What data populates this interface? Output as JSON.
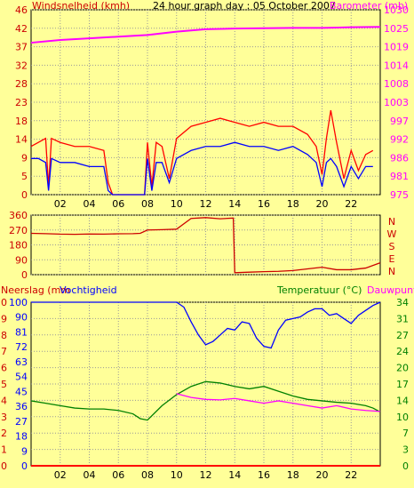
{
  "chart_data": [
    {
      "type": "line",
      "title": "24 hour graph day : 05 October 2007",
      "left_label": "Windsnelheid (kmh)",
      "right_label": "Barometer (mb)",
      "x_ticks": [
        "02",
        "04",
        "06",
        "08",
        "10",
        "12",
        "14",
        "16",
        "18",
        "20",
        "22"
      ],
      "y_left_ticks": [
        "0",
        "5",
        "9",
        "14",
        "18",
        "23",
        "28",
        "32",
        "37",
        "42",
        "46"
      ],
      "y_right_ticks": [
        "975",
        "981",
        "986",
        "992",
        "997",
        "1003",
        "1008",
        "1014",
        "1019",
        "1025",
        "1030"
      ],
      "xlim": [
        0,
        24
      ],
      "y_left_lim": [
        0,
        46
      ],
      "y_right_lim": [
        975,
        1030
      ],
      "series": [
        {
          "axis": "right",
          "color": "#ff00ff",
          "x": [
            0,
            2,
            4,
            6,
            8,
            10,
            12,
            14,
            16,
            18,
            20,
            22,
            24
          ],
          "y": [
            1020.2,
            1021,
            1021.5,
            1022,
            1022.5,
            1023.5,
            1024.2,
            1024.4,
            1024.5,
            1024.6,
            1024.6,
            1024.8,
            1024.9
          ]
        },
        {
          "axis": "left",
          "color": "#ff0000",
          "x": [
            0,
            0.5,
            1,
            1.2,
            1.4,
            2,
            3,
            4,
            5,
            5.3,
            5.6,
            6,
            7,
            7.8,
            8,
            8.3,
            8.6,
            9,
            9.5,
            10,
            11,
            12,
            13,
            14,
            15,
            16,
            17,
            18,
            19,
            19.6,
            20,
            20.3,
            20.6,
            21,
            21.5,
            22,
            22.5,
            23,
            23.5
          ],
          "y": [
            12,
            13,
            14,
            2,
            14,
            13,
            12,
            12,
            11,
            3,
            0,
            0,
            0,
            0,
            13,
            2,
            13,
            12,
            4,
            14,
            17,
            18,
            19,
            18,
            17,
            18,
            17,
            17,
            15,
            12,
            5,
            14,
            21,
            13,
            4,
            11,
            6,
            10,
            11
          ]
        },
        {
          "axis": "left",
          "color": "#0000ff",
          "x": [
            0,
            0.5,
            1,
            1.2,
            1.4,
            2,
            3,
            4,
            5,
            5.3,
            5.6,
            6,
            7,
            7.8,
            8,
            8.3,
            8.6,
            9,
            9.5,
            10,
            11,
            12,
            13,
            14,
            15,
            16,
            17,
            18,
            19,
            19.6,
            20,
            20.3,
            20.6,
            21,
            21.5,
            22,
            22.5,
            23,
            23.5
          ],
          "y": [
            9,
            9,
            8,
            1,
            9,
            8,
            8,
            7,
            7,
            1,
            0,
            0,
            0,
            0,
            9,
            1,
            8,
            8,
            3,
            9,
            11,
            12,
            12,
            13,
            12,
            12,
            11,
            12,
            10,
            8,
            2,
            8,
            9,
            7,
            2,
            7,
            4,
            7,
            7
          ]
        }
      ]
    },
    {
      "type": "line",
      "y_left_ticks": [
        "360",
        "270",
        "180",
        "90",
        "0"
      ],
      "right_ticks": [
        "N",
        "W",
        "S",
        "E",
        "N"
      ],
      "xlim": [
        0,
        24
      ],
      "ylim": [
        0,
        360
      ],
      "series": [
        {
          "color": "#cc0000",
          "x": [
            0,
            1,
            2,
            3,
            4,
            5,
            6,
            7,
            7.5,
            8,
            9,
            10,
            11,
            12,
            13,
            13.9,
            14,
            15,
            16,
            17,
            18,
            19,
            20,
            21,
            22,
            23,
            24
          ],
          "y": [
            250,
            248,
            245,
            244,
            246,
            245,
            247,
            248,
            250,
            270,
            272,
            275,
            340,
            345,
            338,
            342,
            12,
            15,
            18,
            20,
            25,
            35,
            45,
            30,
            30,
            40,
            72
          ]
        }
      ]
    },
    {
      "type": "line",
      "left_label": "Neerslag (mm",
      "left_label2": "Vochtigheid",
      "right_label": "Temperatuur (°C)",
      "right_label2": "Dauwpunt",
      "x_ticks": [
        "02",
        "04",
        "06",
        "08",
        "10",
        "12",
        "14",
        "16",
        "18",
        "20",
        "22"
      ],
      "y_rain_ticks": [
        "10",
        "9",
        "8",
        "7",
        "6",
        "5",
        "4",
        "3",
        "2",
        "1",
        "0"
      ],
      "y_hum_ticks": [
        "100",
        "90",
        "81",
        "72",
        "63",
        "54",
        "45",
        "36",
        "27",
        "18",
        "9",
        "0"
      ],
      "y_temp_ticks": [
        "34",
        "31",
        "27",
        "24",
        "20",
        "17",
        "14",
        "10",
        "7",
        "3",
        "0"
      ],
      "xlim": [
        0,
        24
      ],
      "temp_lim": [
        0,
        34
      ],
      "hum_lim": [
        0,
        100
      ],
      "series": [
        {
          "name": "Vochtigheid",
          "axis": "humidity",
          "color": "#0000ff",
          "x": [
            0,
            1,
            2,
            3,
            4,
            5,
            6,
            7,
            8,
            9,
            10,
            10.5,
            11,
            11.5,
            12,
            12.5,
            13,
            13.5,
            14,
            14.5,
            15,
            15.5,
            16,
            16.5,
            17,
            17.5,
            18,
            18.5,
            19,
            19.5,
            20,
            20.5,
            21,
            21.5,
            22,
            22.5,
            23,
            23.5,
            24
          ],
          "y": [
            100,
            100,
            100,
            100,
            100,
            100,
            100,
            100,
            100,
            100,
            100,
            97,
            88,
            80,
            74,
            76,
            80,
            84,
            83,
            88,
            87,
            78,
            73,
            72,
            83,
            89,
            90,
            91,
            94,
            96,
            96,
            92,
            93,
            90,
            87,
            92,
            95,
            98,
            100
          ]
        },
        {
          "name": "Temperatuur (°C)",
          "axis": "temp",
          "color": "#008000",
          "x": [
            0,
            1,
            2,
            3,
            4,
            5,
            6,
            7,
            7.5,
            8,
            9,
            10,
            11,
            12,
            13,
            14,
            15,
            16,
            17,
            18,
            19,
            20,
            21,
            22,
            23,
            23.5,
            24
          ],
          "y": [
            13.5,
            13,
            12.5,
            12,
            11.8,
            11.8,
            11.5,
            10.8,
            9.8,
            9.5,
            12.5,
            14.8,
            16.5,
            17.5,
            17.2,
            16.5,
            16,
            16.5,
            15.5,
            14.5,
            13.8,
            13.5,
            13.2,
            13,
            12.5,
            12,
            11.2
          ]
        },
        {
          "name": "Dauwpunt",
          "axis": "temp",
          "color": "#ff00ff",
          "x": [
            10,
            11,
            12,
            13,
            14,
            15,
            16,
            17,
            18,
            19,
            20,
            21,
            22,
            23,
            24
          ],
          "y": [
            15,
            14.2,
            13.8,
            13.7,
            14,
            13.5,
            13,
            13.5,
            13,
            12.5,
            12,
            12.5,
            11.8,
            11.5,
            11.3
          ]
        },
        {
          "name": "Neerslag (mm",
          "axis": "rain",
          "color": "#ff0000",
          "x": [
            0,
            24
          ],
          "y": [
            0,
            0
          ]
        }
      ]
    }
  ]
}
